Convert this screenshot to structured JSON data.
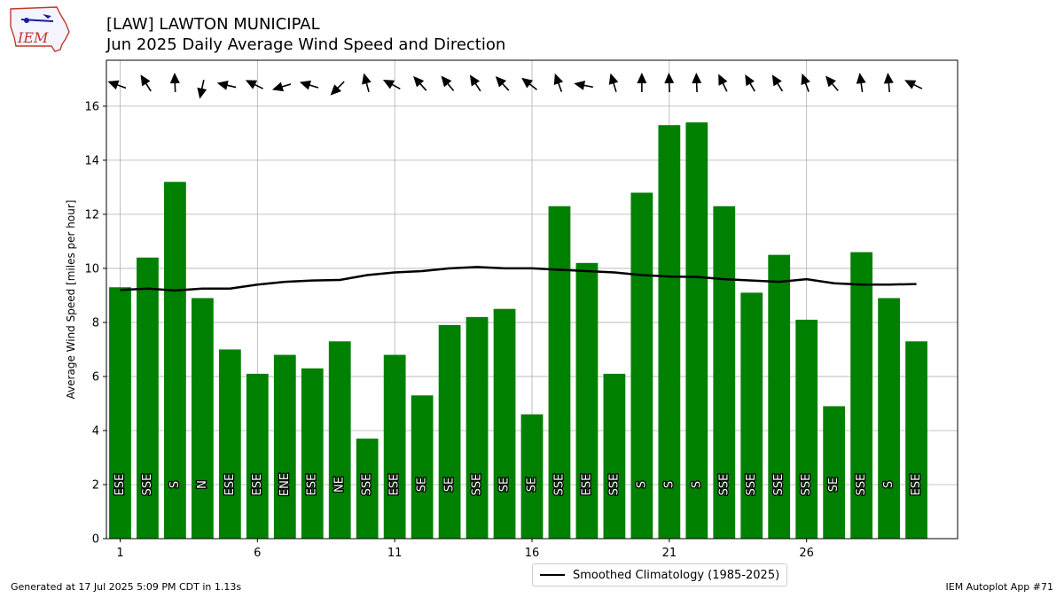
{
  "header": {
    "title_line1": "[LAW] LAWTON MUNICIPAL",
    "title_line2": "Jun 2025 Daily Average Wind Speed and Direction"
  },
  "logo": {
    "text": "IEM",
    "icon": "iem-logo-iowa-map"
  },
  "footer": {
    "generated": "Generated at 17 Jul 2025 5:09 PM CDT in 1.13s",
    "app": "IEM Autoplot App #71"
  },
  "colors": {
    "bar": "#008000",
    "climo_line": "#000000",
    "grid": "#b0b0b0",
    "arrow": "#000000"
  },
  "chart_data": {
    "type": "bar",
    "ylabel": "Average Wind Speed [miles per hour]",
    "ylim": [
      0,
      17.7
    ],
    "yticks": [
      0,
      2,
      4,
      6,
      8,
      10,
      12,
      14,
      16
    ],
    "xlim": [
      0.5,
      31.5
    ],
    "xticks": [
      1,
      6,
      11,
      16,
      21,
      26
    ],
    "grid": true,
    "legend_position": "bottom-center",
    "days": [
      1,
      2,
      3,
      4,
      5,
      6,
      7,
      8,
      9,
      10,
      11,
      12,
      13,
      14,
      15,
      16,
      17,
      18,
      19,
      20,
      21,
      22,
      23,
      24,
      25,
      26,
      27,
      28,
      29,
      30
    ],
    "speed": [
      9.3,
      10.4,
      13.2,
      8.9,
      7.0,
      6.1,
      6.8,
      6.3,
      7.3,
      3.7,
      6.8,
      5.3,
      7.9,
      8.2,
      8.5,
      4.6,
      12.3,
      10.2,
      6.1,
      12.8,
      15.3,
      15.4,
      12.3,
      9.1,
      10.5,
      8.1,
      4.9,
      10.6,
      8.9,
      7.3
    ],
    "direction": [
      "ESE",
      "SSE",
      "S",
      "N",
      "ESE",
      "ESE",
      "ENE",
      "ESE",
      "NE",
      "SSE",
      "ESE",
      "SE",
      "SE",
      "SSE",
      "SE",
      "SE",
      "SSE",
      "ESE",
      "SSE",
      "S",
      "S",
      "S",
      "SSE",
      "SSE",
      "SSE",
      "SSE",
      "SE",
      "SSE",
      "S",
      "ESE"
    ],
    "arrow_direction_degrees": [
      110,
      148,
      178,
      12,
      103,
      116,
      73,
      107,
      45,
      165,
      118,
      138,
      140,
      147,
      137,
      128,
      160,
      101,
      163,
      180,
      178,
      178,
      154,
      150,
      148,
      160,
      140,
      172,
      175,
      116
    ],
    "climatology": {
      "name": "Smoothed Climatology (1985-2025)",
      "values": [
        9.2,
        9.25,
        9.18,
        9.25,
        9.25,
        9.4,
        9.5,
        9.55,
        9.57,
        9.75,
        9.85,
        9.9,
        10.0,
        10.05,
        10.0,
        10.0,
        9.95,
        9.9,
        9.85,
        9.75,
        9.7,
        9.68,
        9.6,
        9.55,
        9.5,
        9.6,
        9.45,
        9.4,
        9.4,
        9.42
      ]
    }
  }
}
